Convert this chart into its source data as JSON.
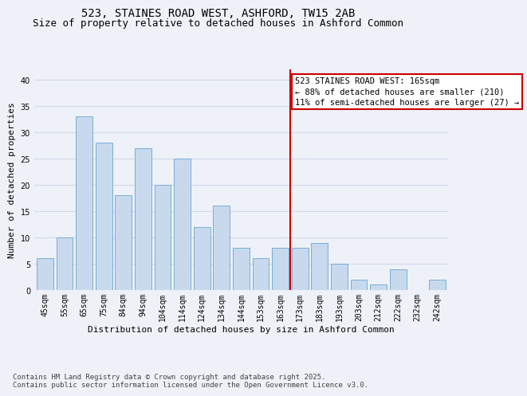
{
  "title": "523, STAINES ROAD WEST, ASHFORD, TW15 2AB",
  "subtitle": "Size of property relative to detached houses in Ashford Common",
  "xlabel": "Distribution of detached houses by size in Ashford Common",
  "ylabel": "Number of detached properties",
  "categories": [
    "45sqm",
    "55sqm",
    "65sqm",
    "75sqm",
    "84sqm",
    "94sqm",
    "104sqm",
    "114sqm",
    "124sqm",
    "134sqm",
    "144sqm",
    "153sqm",
    "163sqm",
    "173sqm",
    "183sqm",
    "193sqm",
    "203sqm",
    "212sqm",
    "222sqm",
    "232sqm",
    "242sqm"
  ],
  "values": [
    6,
    10,
    33,
    28,
    18,
    27,
    20,
    25,
    12,
    16,
    8,
    6,
    8,
    8,
    9,
    5,
    2,
    1,
    4,
    0,
    2
  ],
  "bar_color": "#c8d9ee",
  "bar_edge_color": "#7aadd4",
  "vline_index": 12.5,
  "annotation_text": "523 STAINES ROAD WEST: 165sqm\n← 88% of detached houses are smaller (210)\n11% of semi-detached houses are larger (27) →",
  "annotation_box_color": "#ffffff",
  "annotation_box_edge": "#cc0000",
  "vline_color": "#cc0000",
  "ylim": [
    0,
    42
  ],
  "yticks": [
    0,
    5,
    10,
    15,
    20,
    25,
    30,
    35,
    40
  ],
  "grid_color": "#d0d8e8",
  "background_color": "#eef2f8",
  "footer_text": "Contains HM Land Registry data © Crown copyright and database right 2025.\nContains public sector information licensed under the Open Government Licence v3.0.",
  "title_fontsize": 10,
  "subtitle_fontsize": 9,
  "xlabel_fontsize": 8,
  "ylabel_fontsize": 8,
  "tick_fontsize": 7,
  "annotation_fontsize": 7.5,
  "footer_fontsize": 6.5
}
